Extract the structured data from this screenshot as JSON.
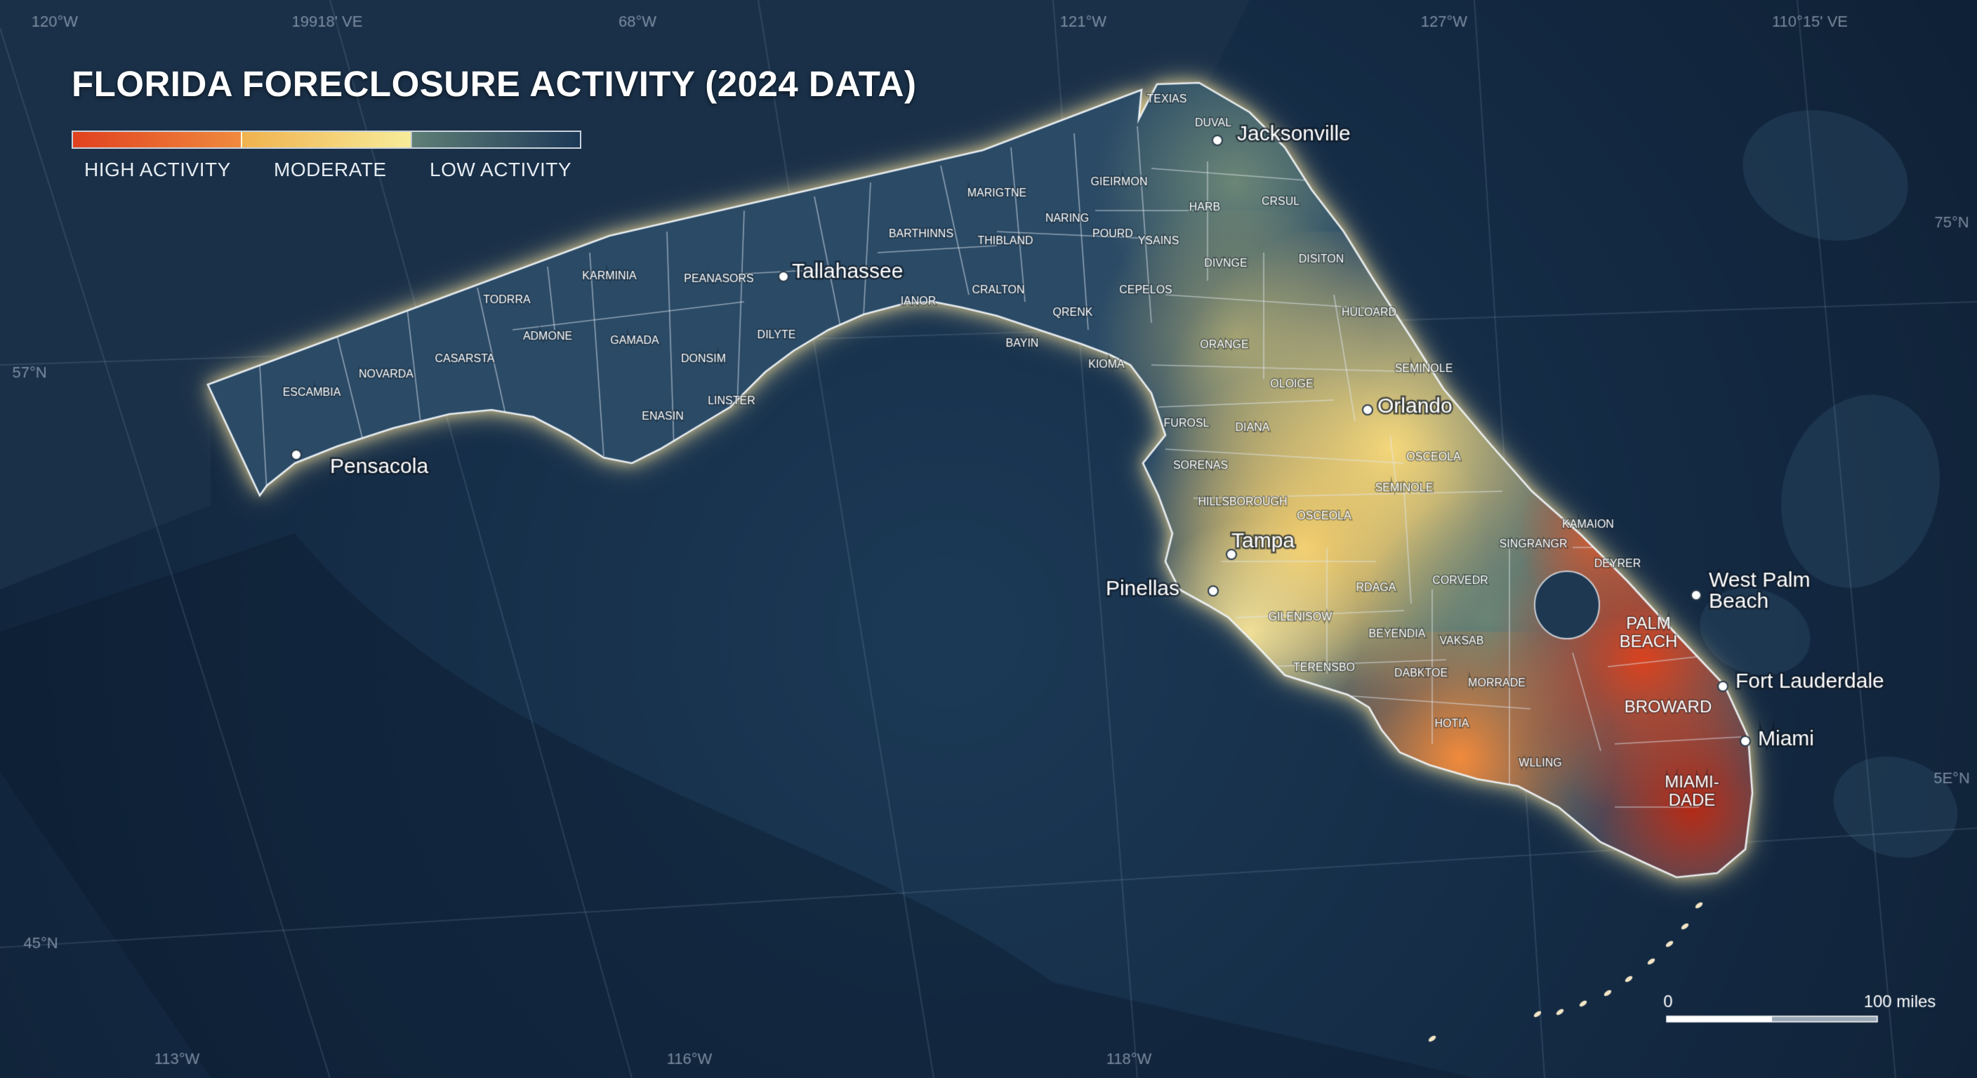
{
  "title": "FLORIDA FORECLOSURE ACTIVITY (2024 DATA)",
  "legend": {
    "items": [
      {
        "label": "HIGH ACTIVITY",
        "color": "#e8542c"
      },
      {
        "label": "MODERATE",
        "color": "#f0c763"
      },
      {
        "label": "LOW ACTIVITY",
        "color": "#284a68"
      }
    ],
    "gradient": [
      "#e0411f",
      "#f08a3e",
      "#f6d36c",
      "#f7ec9a",
      "#6b8a7a",
      "#2a4b6a",
      "#1c3857"
    ]
  },
  "colors": {
    "ocean": "#17304a",
    "land_low": "#23405f",
    "county_border": "#c9d6e2",
    "coast_glow": "#fff2b0",
    "low": "#2a4a66",
    "low_mid": "#3e5e70",
    "sage": "#6f8a78",
    "olive": "#9a9d72",
    "yellow": "#f2d77f",
    "yellow_light": "#f6e49a",
    "gold": "#f3c061",
    "orange": "#f28b3c",
    "red_orange": "#e8612e",
    "red": "#d9421f",
    "dark_red": "#b52a16"
  },
  "graticule_labels": [
    "120°W",
    "19918' VE",
    "68°W",
    "121°W",
    "127°W",
    "110°15' VE",
    "75°N",
    "57°N",
    "5E°N",
    "45°N",
    "113°W",
    "116°W",
    "118°W"
  ],
  "counties": [
    "TEXIAS",
    "DUVAL",
    "GIEIRMON",
    "MARIGTNE",
    "CRSUL",
    "HARB",
    "NARING",
    "POURD",
    "YSAINS",
    "BARTHINNS",
    "THIBLAND",
    "DIVNGE",
    "DISITON",
    "KARMINIA",
    "PEANASORS",
    "TODRRA",
    "ADMONE",
    "GAMADA",
    "NOVARDA",
    "CASARSTA",
    "ESCAMBIA",
    "DONSIM",
    "DILYTE",
    "IANOR",
    "CRALTON",
    "QRENK",
    "CEPELOS",
    "HULOARD",
    "ORANGE",
    "BAYIN",
    "KIOMA",
    "ENASIN",
    "LINSTER",
    "OLOIGE",
    "SEMINOLE",
    "FUROSL",
    "DIANA",
    "SORENAS",
    "OSCEOLA",
    "SEMINOLE",
    "HILLSBOROUGH",
    "OSCEOLA",
    "KAMAION",
    "SINGRANGR",
    "DEYRER",
    "RDAGA",
    "CORVEDR",
    "GILENISOW",
    "BEYENDIA",
    "VAKSAB",
    "TERENSBO",
    "DABKTOE",
    "MORRADE",
    "HOTIA",
    "WLLING",
    "PALM BEACH",
    "BROWARD",
    "MIAMI- DADE"
  ],
  "cities": [
    "Jacksonville",
    "Tallahassee",
    "Orlando",
    "Pensacola",
    "Tampa",
    "Pinellas",
    "West Palm Beach",
    "Fort Lauderdale",
    "Miami"
  ],
  "scale_bar": {
    "start": "0",
    "end": "100 miles"
  }
}
